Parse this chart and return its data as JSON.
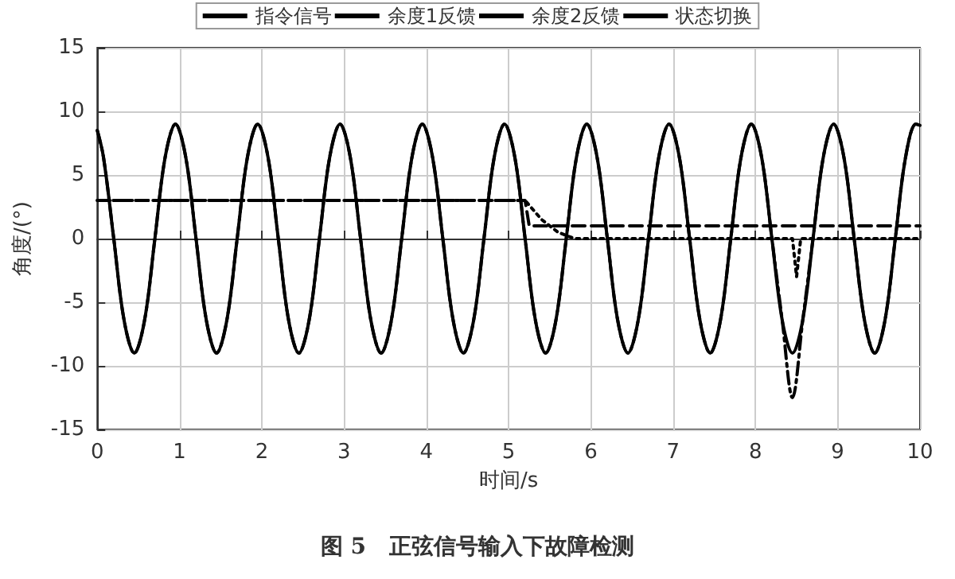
{
  "chart_data": {
    "type": "line",
    "title": "图 5   正弦信号输入下故障检测",
    "xlabel": "时间/s",
    "ylabel": "角度/(°)",
    "x": [
      0,
      0.075,
      0.2,
      0.325,
      0.45,
      0.575,
      0.7,
      0.825,
      0.95,
      1.075,
      1.2,
      1.325,
      1.45,
      1.575,
      1.7,
      1.825,
      1.95,
      2.075,
      2.2,
      2.325,
      2.45,
      2.575,
      2.7,
      2.825,
      2.95,
      3.075,
      3.2,
      3.325,
      3.45,
      3.575,
      3.7,
      3.825,
      3.95,
      4.075,
      4.2,
      4.325,
      4.45,
      4.575,
      4.7,
      4.825,
      4.95,
      5.075,
      5.2,
      5.325,
      5.45,
      5.575,
      5.7,
      5.825,
      5.95,
      6.075,
      6.2,
      6.325,
      6.45,
      6.575,
      6.7,
      6.825,
      6.95,
      7.075,
      7.2,
      7.325,
      7.45,
      7.575,
      7.7,
      7.825,
      7.95,
      8.075,
      8.2,
      8.325,
      8.45,
      8.575,
      8.7,
      8.825,
      8.95,
      9.075,
      9.2,
      9.325,
      9.45,
      9.575,
      9.7,
      9.825,
      9.95,
      10
    ],
    "series": [
      {
        "name": "指令信号",
        "color": "#000000",
        "line_style": "solid",
        "values": [
          8.5,
          6.4,
          0,
          -6.4,
          -9,
          -6.4,
          0,
          6.4,
          9,
          6.4,
          0,
          -6.4,
          -9,
          -6.4,
          0,
          6.4,
          9,
          6.4,
          0,
          -6.4,
          -9,
          -6.4,
          0,
          6.4,
          9,
          6.4,
          0,
          -6.4,
          -9,
          -6.4,
          0,
          6.4,
          9,
          6.4,
          0,
          -6.4,
          -9,
          -6.4,
          0,
          6.4,
          9,
          6.4,
          0,
          -6.4,
          -9,
          -6.4,
          0,
          6.4,
          9,
          6.4,
          0,
          -6.4,
          -9,
          -6.4,
          0,
          6.4,
          9,
          6.4,
          0,
          -6.4,
          -9,
          -6.4,
          0,
          6.4,
          9,
          6.4,
          0,
          -6.4,
          -9,
          -6.4,
          0,
          6.4,
          9,
          6.4,
          0,
          -6.4,
          -9,
          -6.4,
          0,
          6.4,
          9,
          8.9
        ]
      },
      {
        "name": "余度1反馈",
        "color": "#000000",
        "line_style": "dashdot",
        "values": [
          8.5,
          6.4,
          0,
          -6.4,
          -9,
          -6.4,
          0,
          6.4,
          9,
          6.4,
          0,
          -6.4,
          -9,
          -6.4,
          0,
          6.4,
          9,
          6.4,
          0,
          -6.4,
          -9,
          -6.4,
          0,
          6.4,
          9,
          6.4,
          0,
          -6.4,
          -9,
          -6.4,
          0,
          6.4,
          9,
          6.4,
          0,
          -6.4,
          -9,
          -6.4,
          0,
          6.4,
          9,
          6.4,
          0,
          -6.4,
          -9,
          -6.4,
          0,
          6.4,
          9,
          6.4,
          0,
          -6.4,
          -9,
          -6.4,
          0,
          6.4,
          9,
          6.4,
          0,
          -6.4,
          -9,
          -6.4,
          0,
          6.4,
          9,
          6.4,
          0,
          -6.4,
          -12.5,
          -6.4,
          0,
          6.4,
          9,
          6.4,
          0,
          -6.4,
          -9,
          -6.4,
          0,
          6.4,
          9,
          8.9
        ]
      },
      {
        "name": "余度2反馈",
        "color": "#000000",
        "line_style": "dotted",
        "x": [
          0,
          5.2,
          5.4,
          5.6,
          5.8,
          8.45,
          8.5,
          8.55,
          10
        ],
        "values": [
          3,
          3,
          1.5,
          0.5,
          0,
          0,
          -3,
          0,
          0
        ]
      },
      {
        "name": "状态切换",
        "color": "#000000",
        "line_style": "dashed",
        "x": [
          0,
          5.2,
          5.25,
          10
        ],
        "values": [
          3,
          3,
          1,
          1
        ]
      }
    ],
    "xlim": [
      0,
      10
    ],
    "xticks": [
      0,
      1,
      2,
      3,
      4,
      5,
      6,
      7,
      8,
      9,
      10
    ],
    "ylim": [
      -15,
      15
    ],
    "yticks": [
      -15,
      -10,
      -5,
      0,
      5,
      10,
      15
    ],
    "grid": true,
    "legend": "top",
    "marker": "none"
  }
}
